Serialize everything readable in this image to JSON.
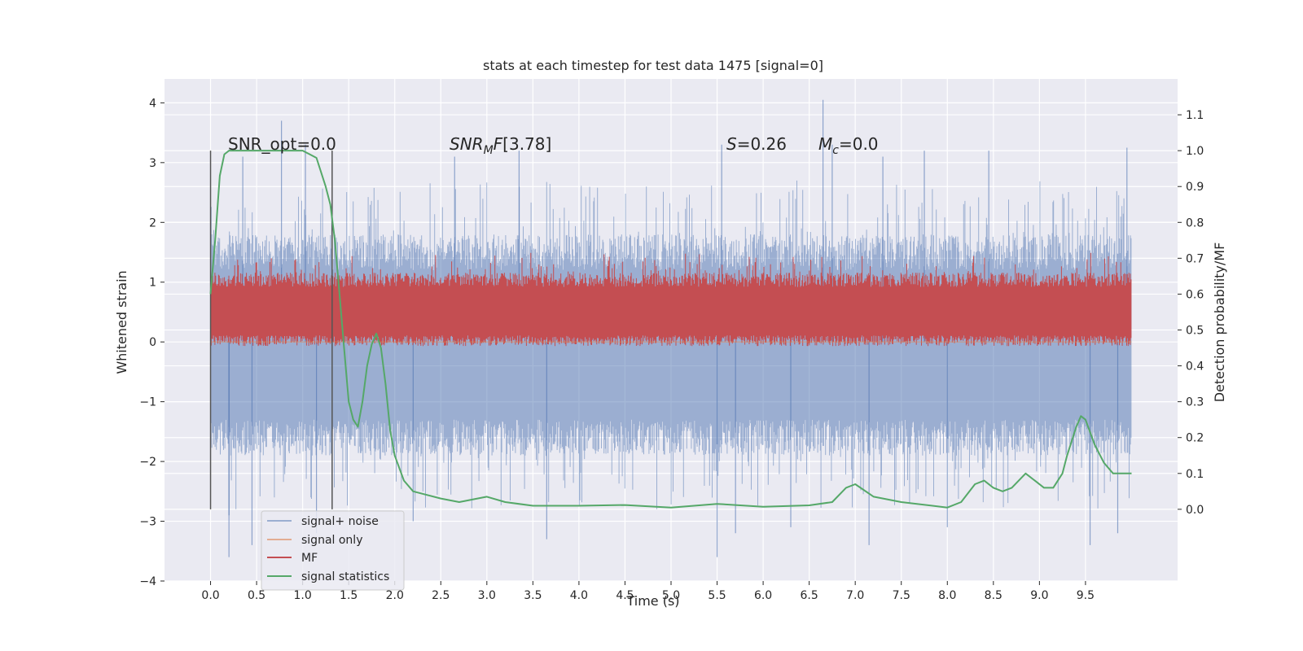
{
  "chart_data": {
    "type": "line",
    "title": "stats at each timestep for test data 1475 [signal=0]",
    "xlabel": "Time (s)",
    "ylabel_left": "Whitened strain",
    "ylabel_right": "Detection probability/MF",
    "xlim": [
      -0.5,
      10.5
    ],
    "ylim_left": [
      -4,
      4.4
    ],
    "ylim_right": [
      -0.2,
      1.2
    ],
    "xticks": [
      0.0,
      0.5,
      1.0,
      1.5,
      2.0,
      2.5,
      3.0,
      3.5,
      4.0,
      4.5,
      5.0,
      5.5,
      6.0,
      6.5,
      7.0,
      7.5,
      8.0,
      8.5,
      9.0,
      9.5
    ],
    "xtick_labels": [
      "0.0",
      "0.5",
      "1.0",
      "1.5",
      "2.0",
      "2.5",
      "3.0",
      "3.5",
      "4.0",
      "4.5",
      "5.0",
      "5.5",
      "6.0",
      "6.5",
      "7.0",
      "7.5",
      "8.0",
      "8.5",
      "9.0",
      "9.5"
    ],
    "yticks_left": [
      -4,
      -3,
      -2,
      -1,
      0,
      1,
      2,
      3,
      4
    ],
    "ytick_labels_left": [
      "−4",
      "−3",
      "−2",
      "−1",
      "0",
      "1",
      "2",
      "3",
      "4"
    ],
    "yticks_right": [
      0.0,
      0.1,
      0.2,
      0.3,
      0.4,
      0.5,
      0.6,
      0.7,
      0.8,
      0.9,
      1.0,
      1.1
    ],
    "ytick_labels_right": [
      "0.0",
      "0.1",
      "0.2",
      "0.3",
      "0.4",
      "0.5",
      "0.6",
      "0.7",
      "0.8",
      "0.9",
      "1.0",
      "1.1"
    ],
    "grid": true,
    "legend_position": "lower-left",
    "annotations": {
      "snr_opt": "SNR_opt=0.0",
      "snr_mf": "[3.78]",
      "s_val": "=0.26",
      "mc_val": "=0.0"
    },
    "vertical_lines": [
      0.0,
      1.32
    ],
    "vertical_line_range": [
      -2.8,
      3.2
    ],
    "series": [
      {
        "name": "signal+ noise",
        "color": "#4c72b0",
        "axis": "left",
        "x_range": [
          0.0,
          10.0
        ],
        "description_band": [
          -1.5,
          1.5
        ],
        "peaks_up": [
          [
            0.35,
            3.1
          ],
          [
            0.77,
            3.7
          ],
          [
            1.03,
            3.3
          ],
          [
            2.65,
            3.1
          ],
          [
            3.35,
            3.2
          ],
          [
            5.55,
            3.3
          ],
          [
            6.65,
            4.05
          ],
          [
            6.75,
            3.3
          ],
          [
            7.3,
            3.1
          ],
          [
            7.75,
            3.2
          ],
          [
            8.45,
            3.2
          ],
          [
            9.95,
            3.25
          ]
        ],
        "peaks_down": [
          [
            0.2,
            -2.9
          ],
          [
            0.2,
            -3.6
          ],
          [
            0.45,
            -3.4
          ],
          [
            1.15,
            -3.2
          ],
          [
            2.2,
            -3.0
          ],
          [
            3.65,
            -3.3
          ],
          [
            5.5,
            -3.6
          ],
          [
            5.7,
            -3.2
          ],
          [
            6.3,
            -3.1
          ],
          [
            7.15,
            -3.4
          ],
          [
            8.0,
            -3.1
          ],
          [
            9.55,
            -3.4
          ],
          [
            9.85,
            -3.2
          ]
        ]
      },
      {
        "name": "signal only",
        "color": "#dd8452",
        "axis": "left",
        "x": [
          0.0,
          10.0
        ],
        "y": [
          0.0,
          0.0
        ]
      },
      {
        "name": "MF",
        "color": "#c44e52",
        "axis": "right",
        "x_range": [
          0.0,
          10.0
        ],
        "band": [
          0.47,
          0.66
        ]
      },
      {
        "name": "signal statistics",
        "color": "#55a868",
        "axis": "right",
        "x": [
          0.0,
          0.05,
          0.1,
          0.15,
          0.2,
          0.3,
          0.5,
          0.8,
          1.0,
          1.15,
          1.25,
          1.3,
          1.35,
          1.4,
          1.45,
          1.5,
          1.55,
          1.6,
          1.65,
          1.7,
          1.75,
          1.8,
          1.85,
          1.9,
          1.95,
          2.0,
          2.1,
          2.2,
          2.5,
          2.7,
          3.0,
          3.2,
          3.5,
          4.0,
          4.5,
          5.0,
          5.5,
          6.0,
          6.5,
          6.75,
          6.9,
          7.0,
          7.2,
          7.5,
          8.0,
          8.15,
          8.3,
          8.4,
          8.5,
          8.6,
          8.7,
          8.85,
          8.95,
          9.05,
          9.15,
          9.25,
          9.3,
          9.4,
          9.45,
          9.5,
          9.6,
          9.7,
          9.8,
          9.9,
          10.0
        ],
        "y": [
          0.6,
          0.75,
          0.93,
          0.99,
          1.0,
          1.0,
          1.0,
          1.0,
          1.0,
          0.98,
          0.9,
          0.85,
          0.75,
          0.6,
          0.45,
          0.3,
          0.25,
          0.23,
          0.3,
          0.4,
          0.46,
          0.49,
          0.45,
          0.35,
          0.22,
          0.15,
          0.08,
          0.05,
          0.03,
          0.02,
          0.035,
          0.02,
          0.01,
          0.01,
          0.012,
          0.005,
          0.015,
          0.007,
          0.011,
          0.02,
          0.06,
          0.07,
          0.035,
          0.02,
          0.005,
          0.02,
          0.07,
          0.08,
          0.06,
          0.05,
          0.06,
          0.1,
          0.08,
          0.06,
          0.06,
          0.1,
          0.15,
          0.23,
          0.26,
          0.25,
          0.18,
          0.13,
          0.1,
          0.1,
          0.1
        ]
      }
    ]
  }
}
